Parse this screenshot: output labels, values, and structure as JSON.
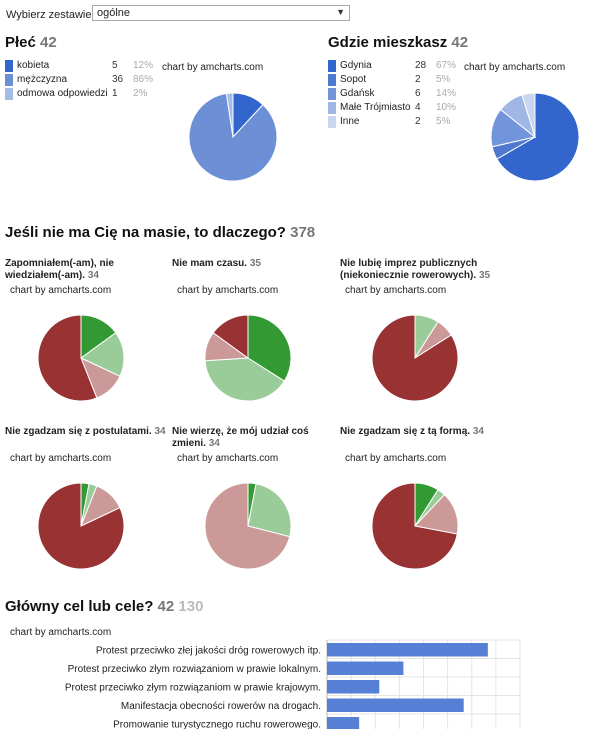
{
  "header": {
    "label": "Wybierz zestawienie",
    "selected": "ogólne"
  },
  "colors": {
    "blue_dark": "#3366cc",
    "blue_mid": "#6d8fd5",
    "blue_light": "#a6bce6",
    "blue_pale": "#c9d6ef",
    "red": "#993333",
    "pink": "#cc9999",
    "green_light": "#99cc99",
    "green": "#339933",
    "bar": "#5580d6"
  },
  "gender": {
    "title": "Płeć",
    "count": "42",
    "credit": "chart by amcharts.com",
    "items": [
      {
        "label": "kobieta",
        "value": "5",
        "pct": "12%"
      },
      {
        "label": "mężczyzna",
        "value": "36",
        "pct": "86%"
      },
      {
        "label": "odmowa odpowiedzi",
        "value": "1",
        "pct": "2%"
      }
    ]
  },
  "place": {
    "title": "Gdzie mieszkasz",
    "count": "42",
    "credit": "chart by amcharts.com",
    "items": [
      {
        "label": "Gdynia",
        "value": "28",
        "pct": "67%"
      },
      {
        "label": "Sopot",
        "value": "2",
        "pct": "5%"
      },
      {
        "label": "Gdańsk",
        "value": "6",
        "pct": "14%"
      },
      {
        "label": "Małe Trójmiasto",
        "value": "4",
        "pct": "10%"
      },
      {
        "label": "Inne",
        "value": "2",
        "pct": "5%"
      }
    ]
  },
  "why": {
    "title": "Jeśli nie ma Cię na masie, to dlaczego?",
    "count": "378",
    "charts": [
      {
        "line1": "Zapomniałem(-am), nie",
        "line2": "wiedziałem(-am).",
        "count": "34",
        "credit": "chart by amcharts.com"
      },
      {
        "line1": "Nie mam czasu.",
        "line2": "",
        "count": "35",
        "credit": "chart by amcharts.com"
      },
      {
        "line1": "Nie lubię imprez publicznych",
        "line2": "(niekoniecznie rowerowych).",
        "count": "35",
        "credit": "chart by amcharts.com"
      },
      {
        "line1": "Nie zgadzam się z postulatami.",
        "line2": "",
        "count": "34",
        "credit": "chart by amcharts.com"
      },
      {
        "line1": "Nie wierzę, że mój udział coś",
        "line2": "zmieni.",
        "count": "34",
        "credit": "chart by amcharts.com"
      },
      {
        "line1": "Nie zgadzam się z tą formą.",
        "line2": "",
        "count": "34",
        "credit": "chart by amcharts.com"
      }
    ]
  },
  "goal": {
    "title": "Główny cel lub cele?",
    "count": "42",
    "count2": "130",
    "credit": "chart by amcharts.com"
  },
  "chart_data": [
    {
      "type": "pie",
      "title": "Płeć",
      "categories": [
        "kobieta",
        "mężczyzna",
        "odmowa odpowiedzi"
      ],
      "values": [
        5,
        36,
        1
      ]
    },
    {
      "type": "pie",
      "title": "Gdzie mieszkasz",
      "categories": [
        "Gdynia",
        "Sopot",
        "Gdańsk",
        "Małe Trójmiasto",
        "Inne"
      ],
      "values": [
        28,
        2,
        6,
        4,
        2
      ]
    },
    {
      "type": "pie",
      "values": [
        15,
        17,
        12,
        56
      ]
    },
    {
      "type": "pie",
      "values": [
        34,
        40,
        11,
        15
      ]
    },
    {
      "type": "pie",
      "values": [
        9,
        7,
        84
      ]
    },
    {
      "type": "pie",
      "values": [
        3,
        3,
        12,
        82
      ]
    },
    {
      "type": "pie",
      "values": [
        3,
        26,
        71
      ]
    },
    {
      "type": "pie",
      "values": [
        9,
        3,
        16,
        72
      ]
    },
    {
      "type": "bar",
      "orientation": "horizontal",
      "categories": [
        "Protest przeciwko złej jakości dróg rowerowych itp.",
        "Protest przeciwko złym rozwiązaniom w prawie lokalnym.",
        "Protest przeciwko złym rozwiązaniom w prawie krajowym.",
        "Manifestacja obecności rowerów na drogach.",
        "Promowanie turystycznego ruchu rowerowego."
      ],
      "values": [
        40,
        19,
        13,
        34,
        8
      ],
      "xlim": [
        0,
        48
      ]
    }
  ]
}
